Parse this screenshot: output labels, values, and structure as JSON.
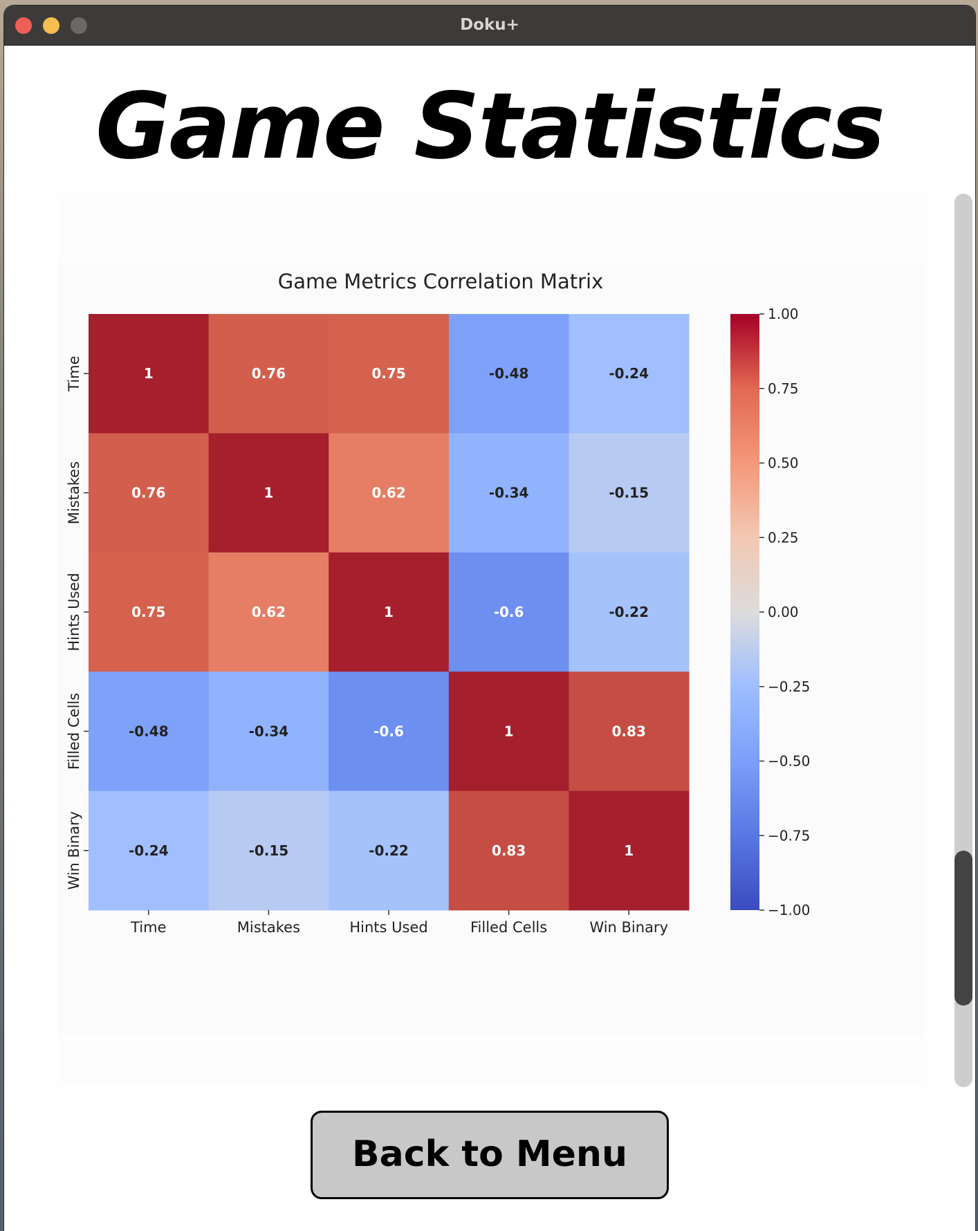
{
  "window": {
    "title": "Doku+",
    "buttons": [
      "close",
      "minimize",
      "zoom"
    ]
  },
  "page": {
    "title": "Game Statistics"
  },
  "actions": {
    "back_label": "Back to Menu"
  },
  "chart_data": {
    "type": "heatmap",
    "title": "Game Metrics Correlation Matrix",
    "x_labels": [
      "Time",
      "Mistakes",
      "Hints Used",
      "Filled Cells",
      "Win Binary"
    ],
    "y_labels": [
      "Time",
      "Mistakes",
      "Hints Used",
      "Filled Cells",
      "Win Binary"
    ],
    "values": [
      [
        1,
        0.76,
        0.75,
        -0.48,
        -0.24
      ],
      [
        0.76,
        1,
        0.62,
        -0.34,
        -0.15
      ],
      [
        0.75,
        0.62,
        1,
        -0.6,
        -0.22
      ],
      [
        -0.48,
        -0.34,
        -0.6,
        1,
        0.83
      ],
      [
        -0.24,
        -0.15,
        -0.22,
        0.83,
        1
      ]
    ],
    "colormap": "coolwarm",
    "vmin": -1,
    "vmax": 1,
    "colorbar_ticks": [
      "1.00",
      "0.75",
      "0.50",
      "0.25",
      "0.00",
      "−0.25",
      "−0.50",
      "−0.75",
      "−1.00"
    ],
    "colorbar_tick_values": [
      1,
      0.75,
      0.5,
      0.25,
      0,
      -0.25,
      -0.5,
      -0.75,
      -1
    ],
    "annotations": true
  }
}
